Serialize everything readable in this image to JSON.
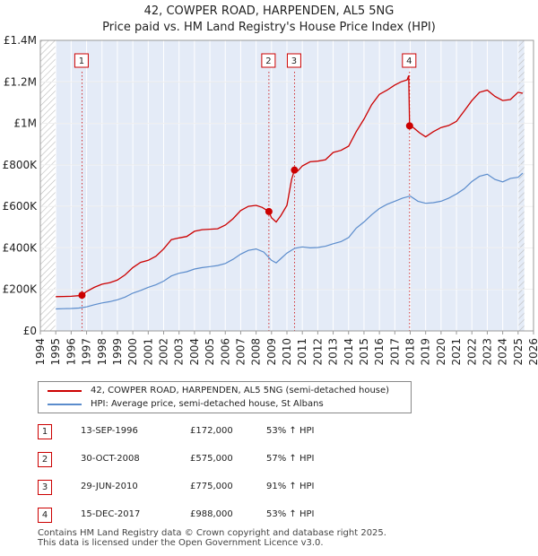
{
  "chart_data": {
    "type": "line",
    "title": "42, COWPER ROAD, HARPENDEN, AL5 5NG",
    "subtitle": "Price paid vs. HM Land Registry's House Price Index (HPI)",
    "xlim": [
      1994,
      2026
    ],
    "ylim": [
      0,
      1400000
    ],
    "x_ticks": [
      "1994",
      "1995",
      "1996",
      "1997",
      "1998",
      "1999",
      "2000",
      "2001",
      "2002",
      "2003",
      "2004",
      "2005",
      "2006",
      "2007",
      "2008",
      "2009",
      "2010",
      "2011",
      "2012",
      "2013",
      "2014",
      "2015",
      "2016",
      "2017",
      "2018",
      "2019",
      "2020",
      "2021",
      "2022",
      "2023",
      "2024",
      "2025",
      "2026"
    ],
    "y_ticks": [
      {
        "value": 0,
        "label": "£0"
      },
      {
        "value": 200000,
        "label": "£200K"
      },
      {
        "value": 400000,
        "label": "£400K"
      },
      {
        "value": 600000,
        "label": "£600K"
      },
      {
        "value": 800000,
        "label": "£800K"
      },
      {
        "value": 1000000,
        "label": "£1M"
      },
      {
        "value": 1200000,
        "label": "£1.2M"
      },
      {
        "value": 1400000,
        "label": "£1.4M"
      }
    ],
    "data_range": [
      1995,
      2025.4
    ],
    "hatched_before": 1995,
    "hatched_after": 2025.0,
    "series": [
      {
        "name": "42, COWPER ROAD, HARPENDEN, AL5 5NG (semi-detached house)",
        "color": "#cc0000",
        "x": [
          1995.0,
          1995.5,
          1996.0,
          1996.5,
          1996.7,
          1997.0,
          1997.5,
          1998.0,
          1998.5,
          1999.0,
          1999.5,
          2000.0,
          2000.5,
          2001.0,
          2001.5,
          2002.0,
          2002.5,
          2003.0,
          2003.5,
          2004.0,
          2004.5,
          2005.0,
          2005.5,
          2006.0,
          2006.5,
          2007.0,
          2007.5,
          2008.0,
          2008.4,
          2008.83,
          2009.0,
          2009.3,
          2009.6,
          2010.0,
          2010.3,
          2010.49,
          2010.7,
          2011.0,
          2011.5,
          2012.0,
          2012.5,
          2013.0,
          2013.5,
          2014.0,
          2014.5,
          2015.0,
          2015.5,
          2016.0,
          2016.5,
          2017.0,
          2017.4,
          2017.8,
          2017.9,
          2017.96,
          2018.2,
          2018.6,
          2019.0,
          2019.5,
          2020.0,
          2020.5,
          2021.0,
          2021.5,
          2022.0,
          2022.5,
          2023.0,
          2023.5,
          2024.0,
          2024.5,
          2025.0,
          2025.3
        ],
        "y": [
          165000,
          166000,
          167000,
          170000,
          172000,
          190000,
          210000,
          225000,
          232000,
          245000,
          270000,
          305000,
          330000,
          340000,
          360000,
          395000,
          440000,
          448000,
          455000,
          480000,
          488000,
          490000,
          492000,
          510000,
          540000,
          580000,
          600000,
          605000,
          595000,
          575000,
          545000,
          525000,
          555000,
          605000,
          730000,
          775000,
          770000,
          795000,
          815000,
          818000,
          825000,
          860000,
          870000,
          890000,
          960000,
          1020000,
          1090000,
          1140000,
          1160000,
          1185000,
          1200000,
          1210000,
          1230000,
          988000,
          980000,
          955000,
          935000,
          960000,
          980000,
          990000,
          1010000,
          1060000,
          1110000,
          1150000,
          1160000,
          1130000,
          1110000,
          1115000,
          1150000,
          1145000
        ]
      },
      {
        "name": "HPI: Average price, semi-detached house, St Albans",
        "color": "#5b8ccc",
        "x": [
          1995.0,
          1995.5,
          1996.0,
          1996.5,
          1997.0,
          1997.5,
          1998.0,
          1998.5,
          1999.0,
          1999.5,
          2000.0,
          2000.5,
          2001.0,
          2001.5,
          2002.0,
          2002.5,
          2003.0,
          2003.5,
          2004.0,
          2004.5,
          2005.0,
          2005.5,
          2006.0,
          2006.5,
          2007.0,
          2007.5,
          2008.0,
          2008.5,
          2009.0,
          2009.3,
          2009.6,
          2010.0,
          2010.5,
          2011.0,
          2011.5,
          2012.0,
          2012.5,
          2013.0,
          2013.5,
          2014.0,
          2014.5,
          2015.0,
          2015.5,
          2016.0,
          2016.5,
          2017.0,
          2017.5,
          2018.0,
          2018.5,
          2019.0,
          2019.5,
          2020.0,
          2020.5,
          2021.0,
          2021.5,
          2022.0,
          2022.5,
          2023.0,
          2023.5,
          2024.0,
          2024.5,
          2025.0,
          2025.3
        ],
        "y": [
          106000,
          107000,
          108000,
          110000,
          116000,
          126000,
          135000,
          141000,
          150000,
          163000,
          182000,
          195000,
          210000,
          222000,
          240000,
          265000,
          278000,
          285000,
          298000,
          305000,
          310000,
          315000,
          325000,
          345000,
          370000,
          388000,
          395000,
          380000,
          340000,
          328000,
          348000,
          375000,
          398000,
          405000,
          400000,
          402000,
          408000,
          420000,
          430000,
          450000,
          495000,
          525000,
          560000,
          590000,
          610000,
          625000,
          640000,
          650000,
          625000,
          615000,
          618000,
          625000,
          640000,
          660000,
          685000,
          720000,
          745000,
          755000,
          730000,
          718000,
          735000,
          740000,
          760000
        ]
      }
    ],
    "annotations": [
      {
        "label": "1",
        "x": 1996.7
      },
      {
        "label": "2",
        "x": 2008.83
      },
      {
        "label": "3",
        "x": 2010.49
      },
      {
        "label": "4",
        "x": 2017.96
      }
    ]
  },
  "legend": {
    "property_label": "42, COWPER ROAD, HARPENDEN, AL5 5NG (semi-detached house)",
    "hpi_label": "HPI: Average price, semi-detached house, St Albans"
  },
  "sales": [
    {
      "num": "1",
      "date": "13-SEP-1996",
      "price": "£172,000",
      "hpi": "53% ↑ HPI"
    },
    {
      "num": "2",
      "date": "30-OCT-2008",
      "price": "£575,000",
      "hpi": "57% ↑ HPI"
    },
    {
      "num": "3",
      "date": "29-JUN-2010",
      "price": "£775,000",
      "hpi": "91% ↑ HPI"
    },
    {
      "num": "4",
      "date": "15-DEC-2017",
      "price": "£988,000",
      "hpi": "53% ↑ HPI"
    }
  ],
  "footer": {
    "line1": "Contains HM Land Registry data © Crown copyright and database right 2025.",
    "line2": "This data is licensed under the Open Government Licence v3.0."
  }
}
